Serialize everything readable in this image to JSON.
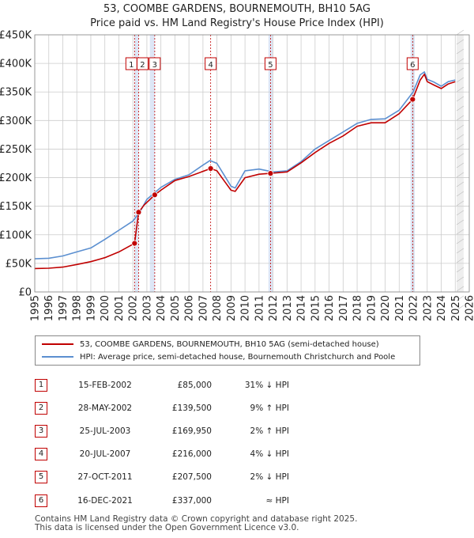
{
  "title": {
    "line1": "53, COOMBE GARDENS, BOURNEMOUTH, BH10 5AG",
    "line2": "Price paid vs. HM Land Registry's House Price Index (HPI)"
  },
  "colors": {
    "price_line": "#c00000",
    "hpi_line": "#5b8fd0",
    "shade": "#dde6f6",
    "grid": "#cccccc",
    "marker_border": "#c00000"
  },
  "legend": {
    "price_label": "53, COOMBE GARDENS, BOURNEMOUTH, BH10 5AG (semi-detached house)",
    "hpi_label": "HPI: Average price, semi-detached house, Bournemouth Christchurch and Poole"
  },
  "sales": [
    {
      "num": "1",
      "date": "15-FEB-2002",
      "price": "£85,000",
      "hpi": "31% ↓ HPI"
    },
    {
      "num": "2",
      "date": "28-MAY-2002",
      "price": "£139,500",
      "hpi": "9% ↑ HPI"
    },
    {
      "num": "3",
      "date": "25-JUL-2003",
      "price": "£169,950",
      "hpi": "2% ↑ HPI"
    },
    {
      "num": "4",
      "date": "20-JUL-2007",
      "price": "£216,000",
      "hpi": "4% ↓ HPI"
    },
    {
      "num": "5",
      "date": "27-OCT-2011",
      "price": "£207,500",
      "hpi": "2% ↓ HPI"
    },
    {
      "num": "6",
      "date": "16-DEC-2021",
      "price": "£337,000",
      "hpi": "≈ HPI"
    }
  ],
  "footer": {
    "line1": "Contains HM Land Registry data © Crown copyright and database right 2025.",
    "line2": "This data is licensed under the Open Government Licence v3.0."
  },
  "chart_data": {
    "type": "line",
    "title": "Price paid vs. HM Land Registry's House Price Index (HPI)",
    "xlabel": "",
    "ylabel": "",
    "xlim": [
      1995,
      2026
    ],
    "ylim": [
      0,
      450000
    ],
    "y_ticks": [
      0,
      50000,
      100000,
      150000,
      200000,
      250000,
      300000,
      350000,
      400000,
      450000
    ],
    "y_tick_labels": [
      "£0",
      "£50K",
      "£100K",
      "£150K",
      "£200K",
      "£250K",
      "£300K",
      "£350K",
      "£400K",
      "£450K"
    ],
    "x_ticks": [
      1995,
      1996,
      1997,
      1998,
      1999,
      2000,
      2001,
      2002,
      2003,
      2004,
      2005,
      2006,
      2007,
      2008,
      2009,
      2010,
      2011,
      2012,
      2013,
      2014,
      2015,
      2016,
      2017,
      2018,
      2019,
      2020,
      2021,
      2022,
      2023,
      2024,
      2025,
      2026
    ],
    "x_tick_labels": [
      "1995",
      "1996",
      "1997",
      "1998",
      "1999",
      "2000",
      "2001",
      "2002",
      "2003",
      "2004",
      "2005",
      "2006",
      "2007",
      "2008",
      "2009",
      "2010",
      "2011",
      "2012",
      "2013",
      "2014",
      "2015",
      "2016",
      "2017",
      "2018",
      "2019",
      "2020",
      "2021",
      "2022",
      "2023",
      "2024",
      "2025",
      "2026"
    ],
    "grid": true,
    "forecast_start": 2025.1,
    "sale_markers": [
      {
        "label": "1",
        "x": 2002.12,
        "value": 85000
      },
      {
        "label": "2",
        "x": 2002.41,
        "value": 139500
      },
      {
        "label": "3",
        "x": 2003.56,
        "value": 169950
      },
      {
        "label": "4",
        "x": 2007.55,
        "value": 216000
      },
      {
        "label": "5",
        "x": 2011.82,
        "value": 207500
      },
      {
        "label": "6",
        "x": 2021.96,
        "value": 337000
      }
    ],
    "series": [
      {
        "name": "HPI: Average price, semi-detached house, Bournemouth Christchurch and Poole",
        "x": [
          1995,
          1996,
          1997,
          1998,
          1999,
          2000,
          2001,
          2002,
          2002.5,
          2003,
          2004,
          2005,
          2006,
          2007,
          2007.5,
          2008,
          2008.5,
          2009,
          2009.3,
          2010,
          2011,
          2012,
          2013,
          2014,
          2015,
          2016,
          2017,
          2018,
          2019,
          2020,
          2021,
          2022,
          2022.5,
          2022.8,
          2023,
          2023.5,
          2024,
          2024.5,
          2025
        ],
        "values": [
          58000,
          59000,
          63000,
          70000,
          77000,
          92000,
          108000,
          124000,
          140000,
          162000,
          183000,
          197000,
          205000,
          222000,
          230000,
          225000,
          205000,
          185000,
          182000,
          212000,
          215000,
          210000,
          212000,
          228000,
          250000,
          265000,
          280000,
          295000,
          302000,
          303000,
          318000,
          350000,
          380000,
          385000,
          372000,
          367000,
          360000,
          368000,
          371000
        ]
      },
      {
        "name": "53, COOMBE GARDENS, BOURNEMOUTH, BH10 5AG (semi-detached house)",
        "x": [
          1995,
          1996,
          1997,
          1998,
          1999,
          2000,
          2001,
          2002.12,
          2002.41,
          2002.8,
          2003.56,
          2004,
          2005,
          2006,
          2007.55,
          2008,
          2008.5,
          2009,
          2009.3,
          2010,
          2011,
          2011.82,
          2012,
          2013,
          2014,
          2015,
          2016,
          2017,
          2018,
          2019,
          2020,
          2021,
          2021.96,
          2022.5,
          2022.8,
          2023,
          2023.5,
          2024,
          2024.5,
          2025
        ],
        "values": [
          41000,
          41500,
          43500,
          48000,
          53000,
          60000,
          70000,
          85000,
          139500,
          152000,
          169950,
          178000,
          195000,
          202000,
          216000,
          212000,
          195000,
          178000,
          176000,
          200000,
          206000,
          207500,
          208000,
          210000,
          226000,
          244000,
          260000,
          273000,
          290000,
          296000,
          296000,
          312000,
          337000,
          371000,
          381000,
          368000,
          362000,
          356000,
          364000,
          368000
        ]
      }
    ]
  }
}
